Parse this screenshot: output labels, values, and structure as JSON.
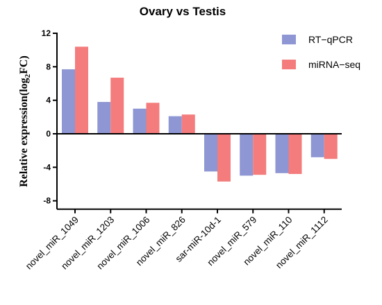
{
  "chart_data": {
    "type": "bar",
    "title": "Ovary vs Testis",
    "ylabel_main": "Relative expression(log",
    "ylabel_sub": "2",
    "ylabel_tail": "FC)",
    "xlabel": "",
    "ylim": [
      -9,
      12
    ],
    "yticks": [
      12,
      8,
      4,
      0,
      -4,
      -8
    ],
    "grid": false,
    "legend_position": "top-right",
    "categories": [
      "novel_miR_1049",
      "novel_miR_1203",
      "novel_miR_1006",
      "novel_miR_826",
      "sar-miR-10d-1",
      "novel_miR_579",
      "novel_miR_110",
      "novel_miR_1112"
    ],
    "series": [
      {
        "name": "RT−qPCR",
        "color": "#8e96d3",
        "values": [
          7.7,
          3.8,
          3.0,
          2.1,
          -4.5,
          -5.0,
          -4.7,
          -2.8
        ]
      },
      {
        "name": "miRNA−seq",
        "color": "#f47c7c",
        "values": [
          10.4,
          6.7,
          3.7,
          2.3,
          -5.7,
          -4.9,
          -4.8,
          -3.0
        ]
      }
    ]
  }
}
